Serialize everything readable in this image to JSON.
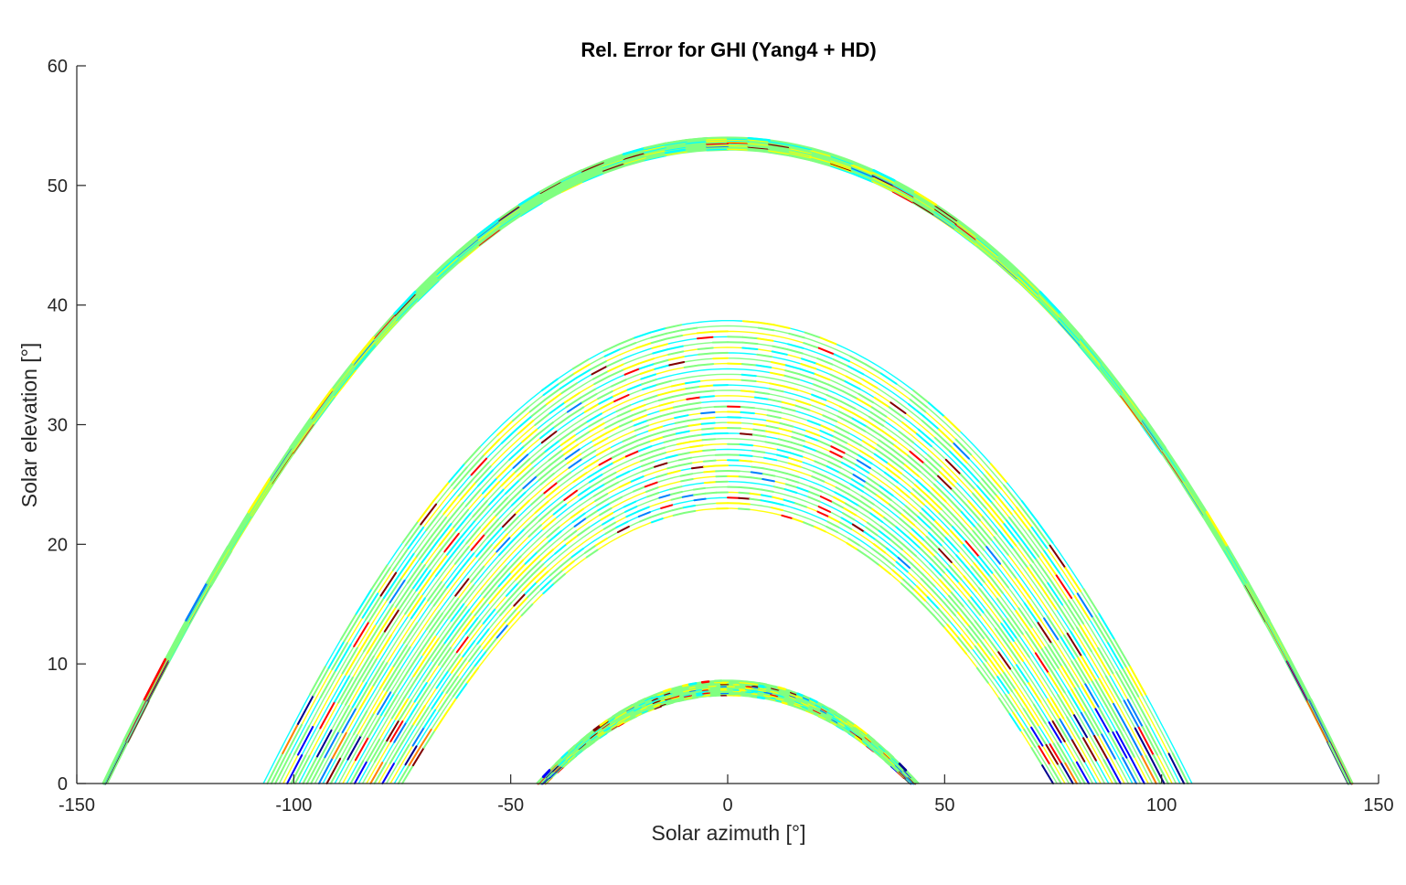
{
  "chart_data": {
    "type": "scatter",
    "title": "Rel. Error for GHI (Yang4 + HD)",
    "xlabel": "Solar azimuth [°]",
    "ylabel": "Solar elevation [°]",
    "xlim": [
      -150,
      150
    ],
    "ylim": [
      0,
      60
    ],
    "xticks": [
      -150,
      -100,
      -50,
      0,
      50,
      100,
      150
    ],
    "yticks": [
      0,
      10,
      20,
      30,
      40,
      50,
      60
    ],
    "x_tick_labels": [
      "-150",
      "-100",
      "-50",
      "0",
      "50",
      "100",
      "150"
    ],
    "y_tick_labels": [
      "0",
      "10",
      "20",
      "30",
      "40",
      "50",
      "60"
    ],
    "grid": false,
    "legend": "none",
    "colormap": "jet",
    "colormap_stops": [
      "#00008f",
      "#0000ff",
      "#0080ff",
      "#00ffff",
      "#80ff80",
      "#ffff00",
      "#ff8000",
      "#ff0000",
      "#800000"
    ],
    "dominant_color": "#80ff80",
    "series": [
      {
        "peak_azimuth": [
          0,
          0
        ],
        "peak_elevation": [
          53,
          54
        ],
        "horizon_azimuth": [
          143,
          144
        ]
      },
      {
        "peak_azimuth": [
          0,
          0
        ],
        "peak_elevation": [
          23,
          38.7
        ],
        "horizon_azimuth": [
          75,
          107
        ]
      },
      {
        "peak_azimuth": [
          0,
          0
        ],
        "peak_elevation": [
          7.4,
          8.6
        ],
        "horizon_azimuth": [
          42,
          44
        ]
      }
    ]
  }
}
